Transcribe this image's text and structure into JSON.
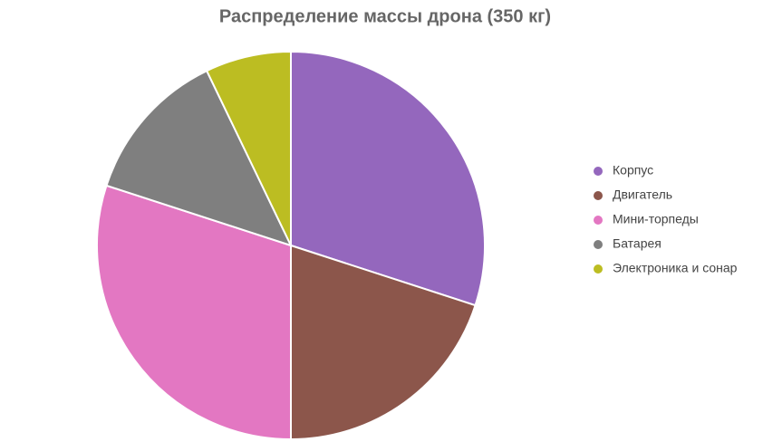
{
  "chart_data": {
    "type": "pie",
    "title": "Распределение массы дрона (350 кг)",
    "categories": [
      "Корпус",
      "Двигатель",
      "Мини-торпеды",
      "Батарея",
      "Электроника и сонар"
    ],
    "values": [
      105,
      70,
      105,
      45,
      25
    ],
    "colors": [
      "#9467bd",
      "#8c564b",
      "#e377c2",
      "#7f7f7f",
      "#bcbd22"
    ],
    "legend": "right"
  }
}
